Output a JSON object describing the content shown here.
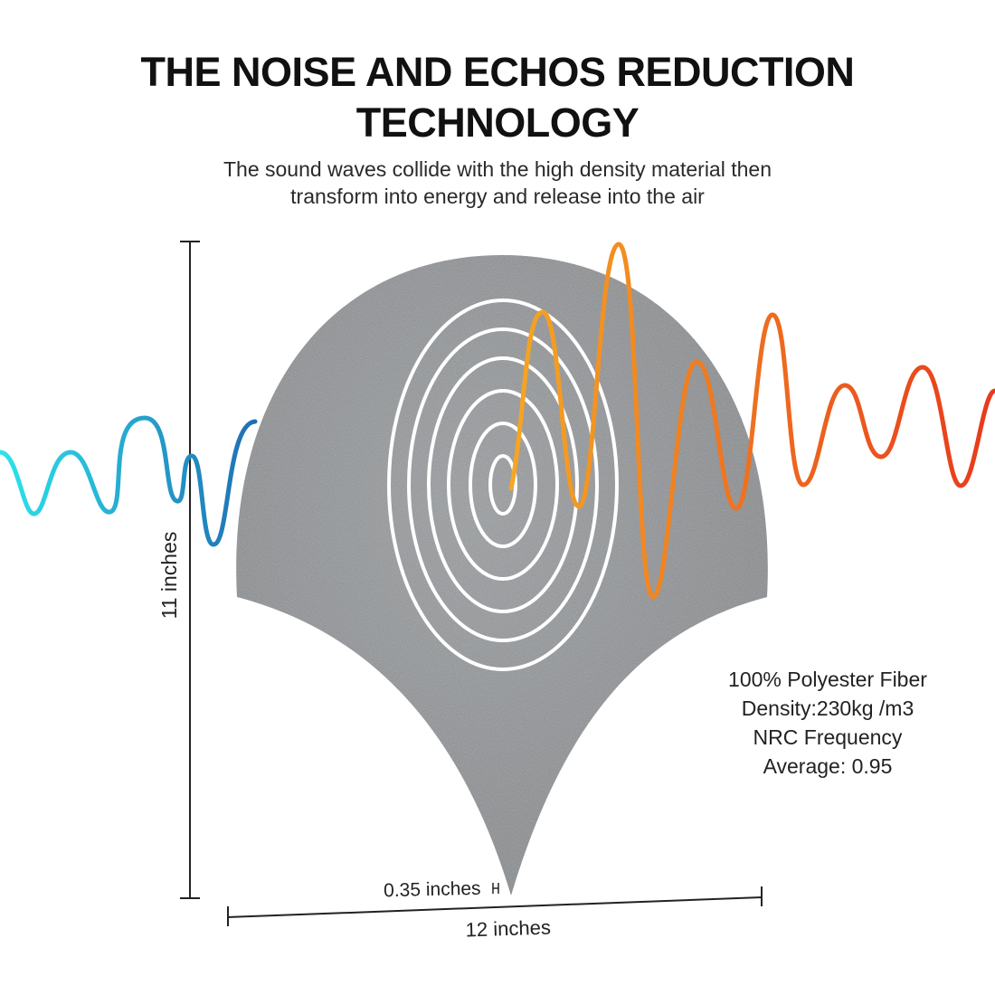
{
  "header": {
    "title_line1": "THE NOISE AND ECHOS REDUCTION",
    "title_line2": "TECHNOLOGY",
    "subtitle_line1": "The sound waves collide with the high density material then",
    "subtitle_line2": "transform into energy and release into the air"
  },
  "dimensions": {
    "height_label": "11 inches",
    "width_label": "12 inches",
    "thickness_label": "0.35 inches"
  },
  "specs": {
    "line1": "100% Polyester Fiber",
    "line2": "Density:230kg /m3",
    "line3": "NRC Frequency",
    "line4": "Average: 0.95"
  },
  "colors": {
    "panel": "#8d9093",
    "wave_in_start": "#2de3ec",
    "wave_in_end": "#1f6fb3",
    "wave_out_start": "#f5a623",
    "wave_out_end": "#e8391c"
  }
}
